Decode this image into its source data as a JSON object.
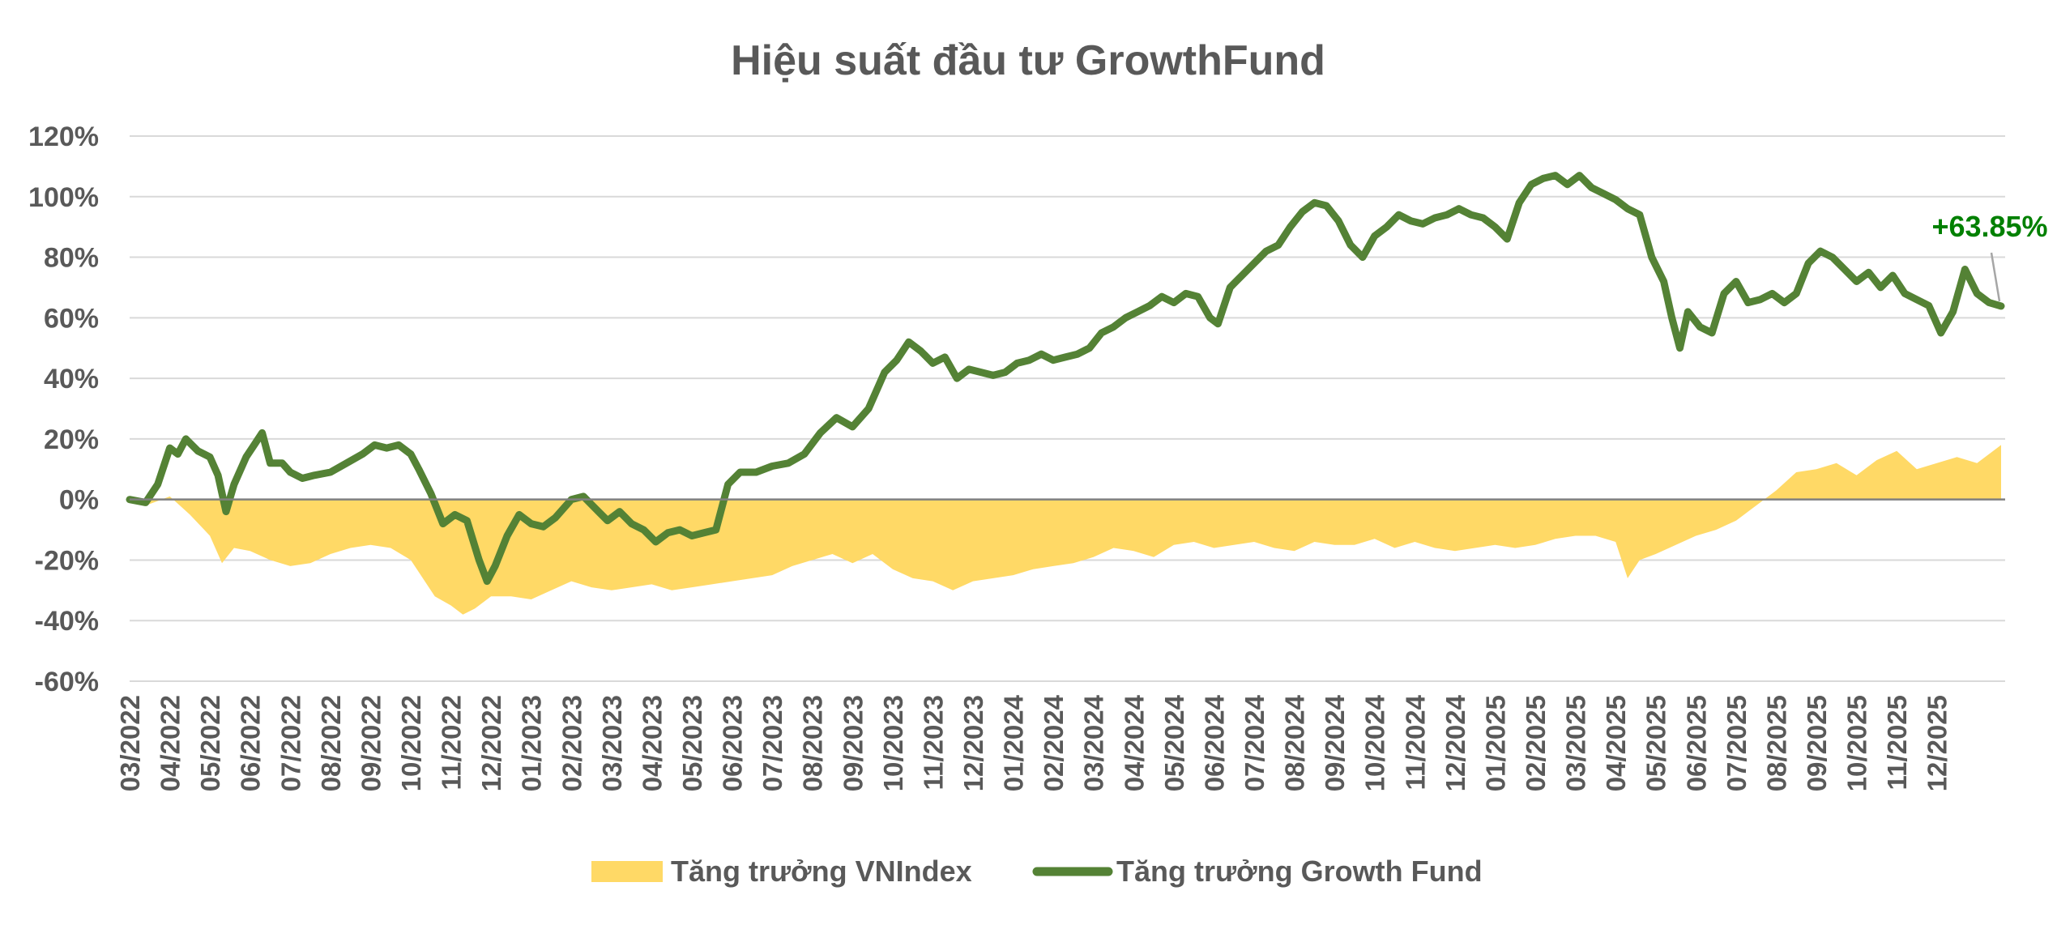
{
  "chart_data": {
    "type": "line",
    "title": "Hiệu suất đầu tư GrowthFund",
    "xlabel": "",
    "ylabel": "",
    "ylim": [
      -60,
      120
    ],
    "yticks": [
      120,
      100,
      80,
      60,
      40,
      20,
      0,
      -20,
      -40,
      -60
    ],
    "ytick_labels": [
      "120%",
      "100%",
      "80%",
      "60%",
      "40%",
      "20%",
      "0%",
      "-20%",
      "-40%",
      "-60%"
    ],
    "xticks": [
      "03/2022",
      "04/2022",
      "05/2022",
      "06/2022",
      "07/2022",
      "08/2022",
      "09/2022",
      "10/2022",
      "11/2022",
      "12/2022",
      "01/2023",
      "02/2023",
      "03/2023",
      "04/2023",
      "05/2023",
      "06/2023",
      "07/2023",
      "08/2023",
      "09/2023",
      "10/2023",
      "11/2023",
      "12/2023",
      "01/2024",
      "02/2024",
      "03/2024",
      "04/2024",
      "05/2024",
      "06/2024",
      "07/2024",
      "08/2024",
      "09/2024",
      "10/2024",
      "11/2024",
      "12/2024",
      "01/2025",
      "02/2025",
      "03/2025",
      "04/2025",
      "05/2025",
      "06/2025",
      "07/2025",
      "08/2025",
      "09/2025",
      "10/2025",
      "11/2025",
      "12/2025"
    ],
    "x_range": [
      0,
      46.7
    ],
    "grid": true,
    "legend_position": "bottom",
    "annotation": {
      "text": "+63.85%",
      "color": "#008000",
      "x": 46.6,
      "y": 63.85
    },
    "series": [
      {
        "name": "Tăng trưởng VNIndex",
        "type": "area",
        "color": "#FFD966",
        "points": [
          [
            0,
            0
          ],
          [
            0.4,
            -2
          ],
          [
            1,
            1
          ],
          [
            1.5,
            -5
          ],
          [
            2,
            -12
          ],
          [
            2.3,
            -21
          ],
          [
            2.6,
            -16
          ],
          [
            3,
            -17
          ],
          [
            3.5,
            -20
          ],
          [
            4,
            -22
          ],
          [
            4.5,
            -21
          ],
          [
            5,
            -18
          ],
          [
            5.5,
            -16
          ],
          [
            6,
            -15
          ],
          [
            6.5,
            -16
          ],
          [
            7,
            -20
          ],
          [
            7.3,
            -26
          ],
          [
            7.6,
            -32
          ],
          [
            8,
            -35
          ],
          [
            8.3,
            -38
          ],
          [
            8.6,
            -36
          ],
          [
            9,
            -32
          ],
          [
            9.5,
            -32
          ],
          [
            10,
            -33
          ],
          [
            10.5,
            -30
          ],
          [
            11,
            -27
          ],
          [
            11.5,
            -29
          ],
          [
            12,
            -30
          ],
          [
            12.5,
            -29
          ],
          [
            13,
            -28
          ],
          [
            13.5,
            -30
          ],
          [
            14,
            -29
          ],
          [
            14.5,
            -28
          ],
          [
            15,
            -27
          ],
          [
            15.5,
            -26
          ],
          [
            16,
            -25
          ],
          [
            16.5,
            -22
          ],
          [
            17,
            -20
          ],
          [
            17.5,
            -18
          ],
          [
            18,
            -21
          ],
          [
            18.5,
            -18
          ],
          [
            19,
            -23
          ],
          [
            19.5,
            -26
          ],
          [
            20,
            -27
          ],
          [
            20.5,
            -30
          ],
          [
            21,
            -27
          ],
          [
            21.5,
            -26
          ],
          [
            22,
            -25
          ],
          [
            22.5,
            -23
          ],
          [
            23,
            -22
          ],
          [
            23.5,
            -21
          ],
          [
            24,
            -19
          ],
          [
            24.5,
            -16
          ],
          [
            25,
            -17
          ],
          [
            25.5,
            -19
          ],
          [
            26,
            -15
          ],
          [
            26.5,
            -14
          ],
          [
            27,
            -16
          ],
          [
            27.5,
            -15
          ],
          [
            28,
            -14
          ],
          [
            28.5,
            -16
          ],
          [
            29,
            -17
          ],
          [
            29.5,
            -14
          ],
          [
            30,
            -15
          ],
          [
            30.5,
            -15
          ],
          [
            31,
            -13
          ],
          [
            31.5,
            -16
          ],
          [
            32,
            -14
          ],
          [
            32.5,
            -16
          ],
          [
            33,
            -17
          ],
          [
            33.5,
            -16
          ],
          [
            34,
            -15
          ],
          [
            34.5,
            -16
          ],
          [
            35,
            -15
          ],
          [
            35.5,
            -13
          ],
          [
            36,
            -12
          ],
          [
            36.5,
            -12
          ],
          [
            37,
            -14
          ],
          [
            37.3,
            -26
          ],
          [
            37.6,
            -20
          ],
          [
            38,
            -18
          ],
          [
            38.5,
            -15
          ],
          [
            39,
            -12
          ],
          [
            39.5,
            -10
          ],
          [
            40,
            -7
          ],
          [
            40.5,
            -2
          ],
          [
            41,
            3
          ],
          [
            41.5,
            9
          ],
          [
            42,
            10
          ],
          [
            42.5,
            12
          ],
          [
            43,
            8
          ],
          [
            43.5,
            13
          ],
          [
            44,
            16
          ],
          [
            44.5,
            10
          ],
          [
            45,
            12
          ],
          [
            45.5,
            14
          ],
          [
            46,
            12
          ],
          [
            46.6,
            18
          ]
        ]
      },
      {
        "name": "Tăng trưởng Growth Fund",
        "type": "line",
        "color": "#548235",
        "points": [
          [
            0,
            0
          ],
          [
            0.4,
            -1
          ],
          [
            0.7,
            5
          ],
          [
            1,
            17
          ],
          [
            1.2,
            15
          ],
          [
            1.4,
            20
          ],
          [
            1.7,
            16
          ],
          [
            2,
            14
          ],
          [
            2.2,
            8
          ],
          [
            2.4,
            -4
          ],
          [
            2.6,
            5
          ],
          [
            2.9,
            14
          ],
          [
            3.1,
            18
          ],
          [
            3.3,
            22
          ],
          [
            3.5,
            12
          ],
          [
            3.8,
            12
          ],
          [
            4,
            9
          ],
          [
            4.3,
            7
          ],
          [
            4.6,
            8
          ],
          [
            5,
            9
          ],
          [
            5.4,
            12
          ],
          [
            5.8,
            15
          ],
          [
            6.1,
            18
          ],
          [
            6.4,
            17
          ],
          [
            6.7,
            18
          ],
          [
            7,
            15
          ],
          [
            7.2,
            10
          ],
          [
            7.5,
            2
          ],
          [
            7.8,
            -8
          ],
          [
            8.1,
            -5
          ],
          [
            8.4,
            -7
          ],
          [
            8.7,
            -20
          ],
          [
            8.9,
            -27
          ],
          [
            9.1,
            -22
          ],
          [
            9.4,
            -12
          ],
          [
            9.7,
            -5
          ],
          [
            10,
            -8
          ],
          [
            10.3,
            -9
          ],
          [
            10.6,
            -6
          ],
          [
            11,
            0
          ],
          [
            11.3,
            1
          ],
          [
            11.6,
            -3
          ],
          [
            11.9,
            -7
          ],
          [
            12.2,
            -4
          ],
          [
            12.5,
            -8
          ],
          [
            12.8,
            -10
          ],
          [
            13.1,
            -14
          ],
          [
            13.4,
            -11
          ],
          [
            13.7,
            -10
          ],
          [
            14,
            -12
          ],
          [
            14.3,
            -11
          ],
          [
            14.6,
            -10
          ],
          [
            14.9,
            5
          ],
          [
            15.2,
            9
          ],
          [
            15.6,
            9
          ],
          [
            16,
            11
          ],
          [
            16.4,
            12
          ],
          [
            16.8,
            15
          ],
          [
            17.2,
            22
          ],
          [
            17.6,
            27
          ],
          [
            18,
            24
          ],
          [
            18.4,
            30
          ],
          [
            18.8,
            42
          ],
          [
            19.1,
            46
          ],
          [
            19.4,
            52
          ],
          [
            19.7,
            49
          ],
          [
            20,
            45
          ],
          [
            20.3,
            47
          ],
          [
            20.6,
            40
          ],
          [
            20.9,
            43
          ],
          [
            21.2,
            42
          ],
          [
            21.5,
            41
          ],
          [
            21.8,
            42
          ],
          [
            22.1,
            45
          ],
          [
            22.4,
            46
          ],
          [
            22.7,
            48
          ],
          [
            23,
            46
          ],
          [
            23.3,
            47
          ],
          [
            23.6,
            48
          ],
          [
            23.9,
            50
          ],
          [
            24.2,
            55
          ],
          [
            24.5,
            57
          ],
          [
            24.8,
            60
          ],
          [
            25.1,
            62
          ],
          [
            25.4,
            64
          ],
          [
            25.7,
            67
          ],
          [
            26,
            65
          ],
          [
            26.3,
            68
          ],
          [
            26.6,
            67
          ],
          [
            26.9,
            60
          ],
          [
            27.1,
            58
          ],
          [
            27.4,
            70
          ],
          [
            27.7,
            74
          ],
          [
            28,
            78
          ],
          [
            28.3,
            82
          ],
          [
            28.6,
            84
          ],
          [
            28.9,
            90
          ],
          [
            29.2,
            95
          ],
          [
            29.5,
            98
          ],
          [
            29.8,
            97
          ],
          [
            30.1,
            92
          ],
          [
            30.4,
            84
          ],
          [
            30.7,
            80
          ],
          [
            31,
            87
          ],
          [
            31.3,
            90
          ],
          [
            31.6,
            94
          ],
          [
            31.9,
            92
          ],
          [
            32.2,
            91
          ],
          [
            32.5,
            93
          ],
          [
            32.8,
            94
          ],
          [
            33.1,
            96
          ],
          [
            33.4,
            94
          ],
          [
            33.7,
            93
          ],
          [
            34,
            90
          ],
          [
            34.3,
            86
          ],
          [
            34.6,
            98
          ],
          [
            34.9,
            104
          ],
          [
            35.2,
            106
          ],
          [
            35.5,
            107
          ],
          [
            35.8,
            104
          ],
          [
            36.1,
            107
          ],
          [
            36.4,
            103
          ],
          [
            36.7,
            101
          ],
          [
            37,
            99
          ],
          [
            37.3,
            96
          ],
          [
            37.6,
            94
          ],
          [
            37.9,
            80
          ],
          [
            38.2,
            72
          ],
          [
            38.4,
            60
          ],
          [
            38.6,
            50
          ],
          [
            38.8,
            62
          ],
          [
            39.1,
            57
          ],
          [
            39.4,
            55
          ],
          [
            39.7,
            68
          ],
          [
            40,
            72
          ],
          [
            40.3,
            65
          ],
          [
            40.6,
            66
          ],
          [
            40.9,
            68
          ],
          [
            41.2,
            65
          ],
          [
            41.5,
            68
          ],
          [
            41.8,
            78
          ],
          [
            42.1,
            82
          ],
          [
            42.4,
            80
          ],
          [
            42.7,
            76
          ],
          [
            43,
            72
          ],
          [
            43.3,
            75
          ],
          [
            43.6,
            70
          ],
          [
            43.9,
            74
          ],
          [
            44.2,
            68
          ],
          [
            44.5,
            66
          ],
          [
            44.8,
            64
          ],
          [
            45.1,
            55
          ],
          [
            45.4,
            62
          ],
          [
            45.7,
            76
          ],
          [
            46,
            68
          ],
          [
            46.3,
            65
          ],
          [
            46.6,
            63.85
          ]
        ]
      }
    ]
  }
}
